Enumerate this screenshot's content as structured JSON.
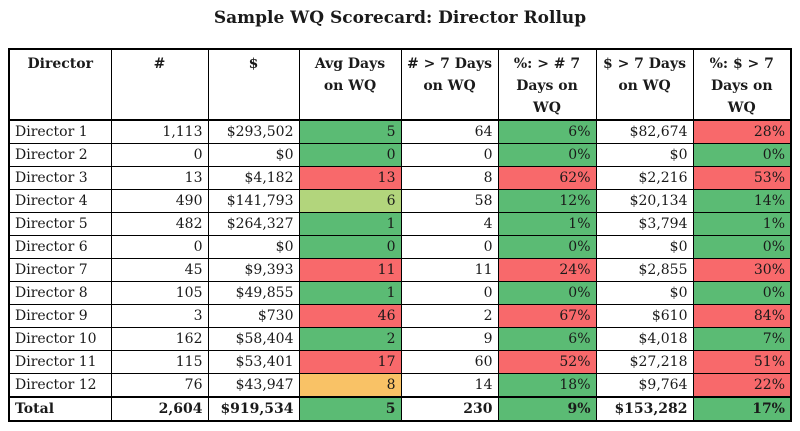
{
  "title": "Sample WQ Scorecard: Director Rollup",
  "colors": {
    "green": "#5bbb74",
    "red": "#f8696b",
    "yellow_green": "#b2d57c",
    "orange": "#f9c266",
    "border": "#000000",
    "background": "#ffffff"
  },
  "chart_data": {
    "type": "table",
    "title": "Sample WQ Scorecard: Director Rollup",
    "col_keys": [
      "director",
      "count",
      "dollars",
      "avg-days",
      "count-gt7",
      "pct-count-gt7",
      "dollars-gt7",
      "pct-dollars-gt7"
    ],
    "columns": [
      "Director",
      "#",
      "$",
      "Avg Days\non WQ",
      "# > 7 Days\non WQ",
      "%: > # 7\nDays on\nWQ",
      "$ > 7 Days\non WQ",
      "%: $ > 7\nDays on\nWQ"
    ],
    "rows": [
      {
        "cells": [
          {
            "v": "Director 1"
          },
          {
            "v": "1,113"
          },
          {
            "v": "$293,502"
          },
          {
            "v": "5",
            "bg": "green"
          },
          {
            "v": "64"
          },
          {
            "v": "6%",
            "bg": "green"
          },
          {
            "v": "$82,674"
          },
          {
            "v": "28%",
            "bg": "red"
          }
        ]
      },
      {
        "cells": [
          {
            "v": "Director 2"
          },
          {
            "v": "0"
          },
          {
            "v": "$0"
          },
          {
            "v": "0",
            "bg": "green"
          },
          {
            "v": "0"
          },
          {
            "v": "0%",
            "bg": "green"
          },
          {
            "v": "$0"
          },
          {
            "v": "0%",
            "bg": "green"
          }
        ]
      },
      {
        "cells": [
          {
            "v": "Director 3"
          },
          {
            "v": "13"
          },
          {
            "v": "$4,182"
          },
          {
            "v": "13",
            "bg": "red"
          },
          {
            "v": "8"
          },
          {
            "v": "62%",
            "bg": "red"
          },
          {
            "v": "$2,216"
          },
          {
            "v": "53%",
            "bg": "red"
          }
        ]
      },
      {
        "cells": [
          {
            "v": "Director 4"
          },
          {
            "v": "490"
          },
          {
            "v": "$141,793"
          },
          {
            "v": "6",
            "bg": "yellow_green"
          },
          {
            "v": "58"
          },
          {
            "v": "12%",
            "bg": "green"
          },
          {
            "v": "$20,134"
          },
          {
            "v": "14%",
            "bg": "green"
          }
        ]
      },
      {
        "cells": [
          {
            "v": "Director 5"
          },
          {
            "v": "482"
          },
          {
            "v": "$264,327"
          },
          {
            "v": "1",
            "bg": "green"
          },
          {
            "v": "4"
          },
          {
            "v": "1%",
            "bg": "green"
          },
          {
            "v": "$3,794"
          },
          {
            "v": "1%",
            "bg": "green"
          }
        ]
      },
      {
        "cells": [
          {
            "v": "Director 6"
          },
          {
            "v": "0"
          },
          {
            "v": "$0"
          },
          {
            "v": "0",
            "bg": "green"
          },
          {
            "v": "0"
          },
          {
            "v": "0%",
            "bg": "green"
          },
          {
            "v": "$0"
          },
          {
            "v": "0%",
            "bg": "green"
          }
        ]
      },
      {
        "cells": [
          {
            "v": "Director 7"
          },
          {
            "v": "45"
          },
          {
            "v": "$9,393"
          },
          {
            "v": "11",
            "bg": "red"
          },
          {
            "v": "11"
          },
          {
            "v": "24%",
            "bg": "red"
          },
          {
            "v": "$2,855"
          },
          {
            "v": "30%",
            "bg": "red"
          }
        ]
      },
      {
        "cells": [
          {
            "v": "Director 8"
          },
          {
            "v": "105"
          },
          {
            "v": "$49,855"
          },
          {
            "v": "1",
            "bg": "green"
          },
          {
            "v": "0"
          },
          {
            "v": "0%",
            "bg": "green"
          },
          {
            "v": "$0"
          },
          {
            "v": "0%",
            "bg": "green"
          }
        ]
      },
      {
        "cells": [
          {
            "v": "Director 9"
          },
          {
            "v": "3"
          },
          {
            "v": "$730"
          },
          {
            "v": "46",
            "bg": "red"
          },
          {
            "v": "2"
          },
          {
            "v": "67%",
            "bg": "red"
          },
          {
            "v": "$610"
          },
          {
            "v": "84%",
            "bg": "red"
          }
        ]
      },
      {
        "cells": [
          {
            "v": "Director 10"
          },
          {
            "v": "162"
          },
          {
            "v": "$58,404"
          },
          {
            "v": "2",
            "bg": "green"
          },
          {
            "v": "9"
          },
          {
            "v": "6%",
            "bg": "green"
          },
          {
            "v": "$4,018"
          },
          {
            "v": "7%",
            "bg": "green"
          }
        ]
      },
      {
        "cells": [
          {
            "v": "Director 11"
          },
          {
            "v": "115"
          },
          {
            "v": "$53,401"
          },
          {
            "v": "17",
            "bg": "red"
          },
          {
            "v": "60"
          },
          {
            "v": "52%",
            "bg": "red"
          },
          {
            "v": "$27,218"
          },
          {
            "v": "51%",
            "bg": "red"
          }
        ]
      },
      {
        "cells": [
          {
            "v": "Director 12"
          },
          {
            "v": "76"
          },
          {
            "v": "$43,947"
          },
          {
            "v": "8",
            "bg": "orange"
          },
          {
            "v": "14"
          },
          {
            "v": "18%",
            "bg": "green"
          },
          {
            "v": "$9,764"
          },
          {
            "v": "22%",
            "bg": "red"
          }
        ]
      },
      {
        "bold": true,
        "cells": [
          {
            "v": "Total"
          },
          {
            "v": "2,604"
          },
          {
            "v": "$919,534"
          },
          {
            "v": "5",
            "bg": "green"
          },
          {
            "v": "230"
          },
          {
            "v": "9%",
            "bg": "green"
          },
          {
            "v": "$153,282"
          },
          {
            "v": "17%",
            "bg": "green"
          }
        ]
      }
    ]
  }
}
